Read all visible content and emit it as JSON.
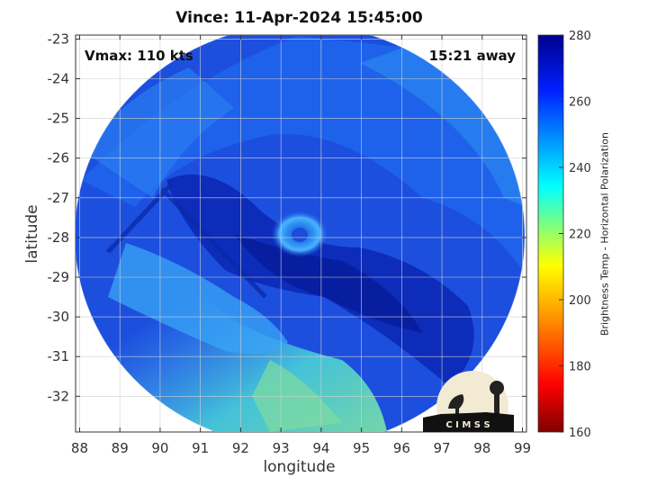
{
  "title": "Vince: 11-Apr-2024 15:45:00",
  "vmax_text": "Vmax: 110 kts",
  "time_away_text": "15:21 away",
  "axes": {
    "xlabel": "longitude",
    "ylabel": "latitude",
    "xlim": [
      87.9,
      99.1
    ],
    "ylim": [
      -32.9,
      -22.9
    ],
    "xticks": [
      "88",
      "89",
      "90",
      "91",
      "92",
      "93",
      "94",
      "95",
      "96",
      "97",
      "98",
      "99"
    ],
    "yticks": [
      "-23",
      "-24",
      "-25",
      "-26",
      "-27",
      "-28",
      "-29",
      "-30",
      "-31",
      "-32"
    ],
    "grid": true
  },
  "colorbar": {
    "label": "Brightness Temp - Horizontal Polarization",
    "ticks": [
      "280",
      "260",
      "240",
      "220",
      "200",
      "180",
      "160"
    ],
    "range": [
      160,
      280
    ],
    "colors": [
      "#7f0000",
      "#ff0000",
      "#ff8c00",
      "#ffff00",
      "#7fff7f",
      "#00ffff",
      "#0090ff",
      "#0020ff",
      "#00008f"
    ]
  },
  "swath": {
    "center_lon": 93.5,
    "center_lat": -27.8,
    "eye_lon": 93.4,
    "eye_lat": -28.0,
    "background_color": "#1c4cdc"
  },
  "logo": {
    "text": "C I M S S"
  }
}
